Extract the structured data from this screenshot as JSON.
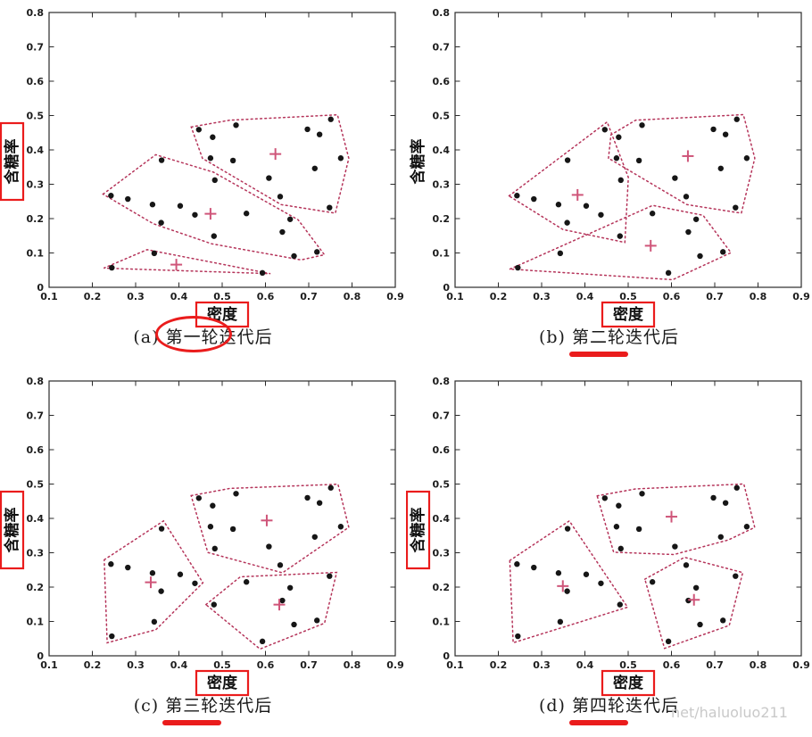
{
  "figure": {
    "watermark": "net/haluoluo211",
    "annotation_color": "#ea1c1c",
    "point_color": "#161616",
    "cluster_line_color": "#b5345a",
    "centroid_color": "#cf5579",
    "axis_color": "#2b2b2b"
  },
  "chart_data": {
    "type": "scatter",
    "title": "",
    "xlabel": "密度",
    "ylabel": "含糖率",
    "xlim": [
      0.1,
      0.9
    ],
    "ylim": [
      0,
      0.8
    ],
    "grid": false,
    "xticks": [
      "0.1",
      "0.2",
      "0.3",
      "0.4",
      "0.5",
      "0.6",
      "0.7",
      "0.8",
      "0.9"
    ],
    "yticks": [
      "0",
      "0.1",
      "0.2",
      "0.3",
      "0.4",
      "0.5",
      "0.6",
      "0.7",
      "0.8"
    ],
    "points": [
      [
        0.697,
        0.46
      ],
      [
        0.774,
        0.376
      ],
      [
        0.634,
        0.264
      ],
      [
        0.608,
        0.318
      ],
      [
        0.556,
        0.215
      ],
      [
        0.403,
        0.237
      ],
      [
        0.481,
        0.149
      ],
      [
        0.437,
        0.211
      ],
      [
        0.666,
        0.091
      ],
      [
        0.243,
        0.267
      ],
      [
        0.245,
        0.057
      ],
      [
        0.343,
        0.099
      ],
      [
        0.639,
        0.161
      ],
      [
        0.657,
        0.198
      ],
      [
        0.36,
        0.37
      ],
      [
        0.593,
        0.042
      ],
      [
        0.719,
        0.103
      ],
      [
        0.359,
        0.188
      ],
      [
        0.339,
        0.241
      ],
      [
        0.282,
        0.257
      ],
      [
        0.748,
        0.232
      ],
      [
        0.714,
        0.346
      ],
      [
        0.483,
        0.312
      ],
      [
        0.478,
        0.437
      ],
      [
        0.525,
        0.369
      ],
      [
        0.751,
        0.489
      ],
      [
        0.532,
        0.472
      ],
      [
        0.473,
        0.376
      ],
      [
        0.725,
        0.445
      ],
      [
        0.446,
        0.459
      ]
    ],
    "subplots": [
      {
        "prefix": "(a)",
        "round": "第一轮",
        "suffix": "迭代后",
        "caption": "(a) 第一轮迭代后",
        "mark": "ellipse",
        "ylabel_boxed": true,
        "xlabel_boxed": true,
        "clusters": [
          {
            "indices": [
              1,
              2,
              3,
              4,
              21,
              22,
              24,
              25,
              26,
              27,
              28,
              29,
              30
            ],
            "centroid": [
              0.623,
              0.388
            ]
          },
          {
            "indices": [
              5,
              6,
              7,
              8,
              9,
              10,
              13,
              14,
              15,
              17,
              18,
              19,
              20,
              23
            ],
            "centroid": [
              0.473,
              0.214
            ]
          },
          {
            "indices": [
              11,
              12,
              16
            ],
            "centroid": [
              0.394,
              0.066
            ]
          }
        ]
      },
      {
        "prefix": "(b)",
        "round": "第二轮",
        "suffix": "迭代后",
        "caption": "(b) 第二轮迭代后",
        "mark": "underline",
        "ylabel_boxed": false,
        "xlabel_boxed": true,
        "clusters": [
          {
            "indices": [
              1,
              2,
              3,
              4,
              21,
              22,
              24,
              25,
              26,
              27,
              28,
              29
            ],
            "centroid": [
              0.638,
              0.382
            ]
          },
          {
            "indices": [
              6,
              7,
              8,
              10,
              15,
              18,
              19,
              20,
              23,
              30
            ],
            "centroid": [
              0.383,
              0.269
            ]
          },
          {
            "indices": [
              5,
              9,
              11,
              12,
              13,
              14,
              16,
              17
            ],
            "centroid": [
              0.552,
              0.121
            ]
          }
        ]
      },
      {
        "prefix": "(c)",
        "round": "第三轮",
        "suffix": "迭代后",
        "caption": "(c) 第三轮迭代后",
        "mark": "underline",
        "ylabel_boxed": true,
        "xlabel_boxed": true,
        "clusters": [
          {
            "indices": [
              1,
              2,
              3,
              4,
              22,
              23,
              24,
              25,
              26,
              27,
              28,
              29,
              30
            ],
            "centroid": [
              0.603,
              0.394
            ]
          },
          {
            "indices": [
              6,
              8,
              10,
              11,
              12,
              15,
              18,
              19,
              20
            ],
            "centroid": [
              0.335,
              0.214
            ]
          },
          {
            "indices": [
              5,
              7,
              9,
              13,
              14,
              16,
              17,
              21
            ],
            "centroid": [
              0.632,
              0.149
            ]
          }
        ]
      },
      {
        "prefix": "(d)",
        "round": "第四轮",
        "suffix": "迭代后",
        "caption": "(d) 第四轮迭代后",
        "mark": "underline",
        "ylabel_boxed": true,
        "xlabel_boxed": true,
        "clusters": [
          {
            "indices": [
              1,
              2,
              4,
              22,
              23,
              24,
              25,
              26,
              27,
              28,
              29,
              30
            ],
            "centroid": [
              0.6,
              0.405
            ]
          },
          {
            "indices": [
              6,
              7,
              8,
              10,
              11,
              12,
              15,
              18,
              19,
              20
            ],
            "centroid": [
              0.349,
              0.203
            ]
          },
          {
            "indices": [
              3,
              5,
              9,
              13,
              14,
              16,
              17,
              21
            ],
            "centroid": [
              0.652,
              0.163
            ]
          }
        ]
      }
    ]
  }
}
